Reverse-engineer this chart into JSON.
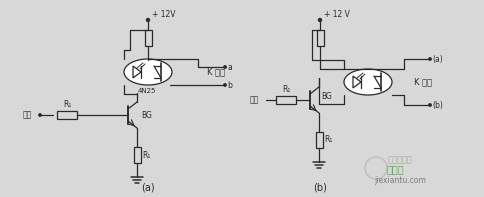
{
  "bg_color": "#d8d8d8",
  "line_color": "#2a2a2a",
  "line_width": 0.9,
  "fig_width": 4.84,
  "fig_height": 1.97,
  "dpi": 100,
  "label_a": "(a)",
  "label_b": "(b)",
  "text_12v_a": "+ 12V",
  "text_12v_b": "+ 12 V",
  "text_k_open": "K 常开",
  "text_k_closed": "K 常闭",
  "text_input_a": "输入",
  "text_input_b": "输入",
  "text_r1_a": "R₁",
  "text_r2_a": "R₁",
  "text_bg_a": "BG",
  "text_4n25": "4N25",
  "text_r1_b": "R₁",
  "text_r2_b": "R₁",
  "text_bg_b": "BG",
  "wm1": "电子发烧友",
  "wm2": "接线图",
  "wm3": "jiexiantu",
  "wm4": ".com"
}
